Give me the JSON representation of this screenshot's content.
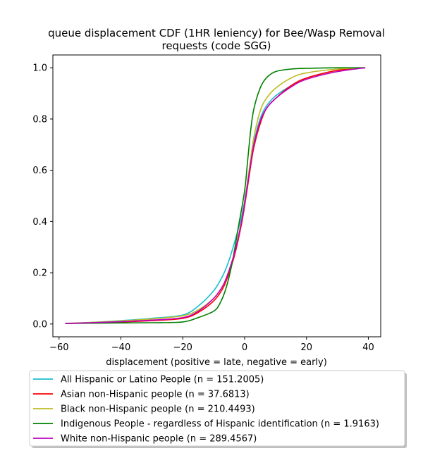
{
  "chart_data": {
    "type": "line",
    "title": "queue displacement CDF (1HR leniency) for Bee/Wasp Removal requests (code SGG)",
    "title_lines": [
      "queue displacement CDF (1HR leniency) for Bee/Wasp Removal",
      "requests (code SGG)"
    ],
    "xlabel": "displacement (positive = late, negative = early)",
    "ylabel": "",
    "xlim": [
      -62,
      44
    ],
    "ylim": [
      -0.05,
      1.05
    ],
    "xticks": [
      -60,
      -40,
      -20,
      0,
      20,
      40
    ],
    "yticks": [
      0.0,
      0.2,
      0.4,
      0.6,
      0.8,
      1.0
    ],
    "xtick_labels": [
      "−60",
      "−40",
      "−20",
      "0",
      "20",
      "40"
    ],
    "ytick_labels": [
      "0.0",
      "0.2",
      "0.4",
      "0.6",
      "0.8",
      "1.0"
    ],
    "grid": false,
    "legend_position": "below plot",
    "series": [
      {
        "name": "All Hispanic or Latino People (n = 151.2005)",
        "color": "#17becf",
        "points": [
          [
            -58,
            0.002
          ],
          [
            -50,
            0.006
          ],
          [
            -40,
            0.013
          ],
          [
            -30,
            0.022
          ],
          [
            -20,
            0.035
          ],
          [
            -15,
            0.07
          ],
          [
            -10,
            0.13
          ],
          [
            -7,
            0.19
          ],
          [
            -5,
            0.25
          ],
          [
            -3,
            0.33
          ],
          [
            -1,
            0.42
          ],
          [
            0,
            0.48
          ],
          [
            1,
            0.56
          ],
          [
            2,
            0.64
          ],
          [
            3,
            0.71
          ],
          [
            5,
            0.8
          ],
          [
            7,
            0.85
          ],
          [
            10,
            0.89
          ],
          [
            15,
            0.93
          ],
          [
            20,
            0.96
          ],
          [
            30,
            0.99
          ],
          [
            39,
            1.0
          ]
        ]
      },
      {
        "name": "Asian non-Hispanic people (n = 37.6813)",
        "color": "#ff0000",
        "points": [
          [
            -58,
            0.002
          ],
          [
            -50,
            0.004
          ],
          [
            -40,
            0.008
          ],
          [
            -30,
            0.013
          ],
          [
            -20,
            0.022
          ],
          [
            -15,
            0.045
          ],
          [
            -10,
            0.09
          ],
          [
            -7,
            0.14
          ],
          [
            -5,
            0.2
          ],
          [
            -3,
            0.28
          ],
          [
            -1,
            0.39
          ],
          [
            0,
            0.46
          ],
          [
            1,
            0.54
          ],
          [
            2,
            0.62
          ],
          [
            3,
            0.69
          ],
          [
            5,
            0.78
          ],
          [
            7,
            0.84
          ],
          [
            10,
            0.88
          ],
          [
            15,
            0.93
          ],
          [
            20,
            0.96
          ],
          [
            30,
            0.99
          ],
          [
            39,
            1.0
          ]
        ]
      },
      {
        "name": "Black non-Hispanic people (n = 210.4493)",
        "color": "#bcbd22",
        "points": [
          [
            -58,
            0.002
          ],
          [
            -50,
            0.006
          ],
          [
            -40,
            0.012
          ],
          [
            -30,
            0.02
          ],
          [
            -20,
            0.032
          ],
          [
            -15,
            0.055
          ],
          [
            -10,
            0.1
          ],
          [
            -7,
            0.15
          ],
          [
            -5,
            0.21
          ],
          [
            -3,
            0.29
          ],
          [
            -1,
            0.4
          ],
          [
            0,
            0.47
          ],
          [
            1,
            0.56
          ],
          [
            2,
            0.65
          ],
          [
            3,
            0.73
          ],
          [
            5,
            0.83
          ],
          [
            7,
            0.88
          ],
          [
            10,
            0.92
          ],
          [
            15,
            0.96
          ],
          [
            20,
            0.98
          ],
          [
            30,
            0.995
          ],
          [
            39,
            1.0
          ]
        ]
      },
      {
        "name": "Indigenous People - regardless of Hispanic identification (n = 1.9163)",
        "color": "#008000",
        "points": [
          [
            -58,
            0.002
          ],
          [
            -50,
            0.003
          ],
          [
            -40,
            0.004
          ],
          [
            -30,
            0.005
          ],
          [
            -20,
            0.008
          ],
          [
            -15,
            0.025
          ],
          [
            -10,
            0.05
          ],
          [
            -8,
            0.08
          ],
          [
            -6,
            0.14
          ],
          [
            -4,
            0.24
          ],
          [
            -2,
            0.38
          ],
          [
            0,
            0.52
          ],
          [
            1,
            0.64
          ],
          [
            2,
            0.76
          ],
          [
            3,
            0.84
          ],
          [
            5,
            0.92
          ],
          [
            7,
            0.96
          ],
          [
            10,
            0.985
          ],
          [
            15,
            0.995
          ],
          [
            20,
            0.998
          ],
          [
            30,
            1.0
          ],
          [
            39,
            1.0
          ]
        ]
      },
      {
        "name": "White non-Hispanic people (n = 289.4567)",
        "color": "#bf00bf",
        "points": [
          [
            -58,
            0.002
          ],
          [
            -50,
            0.005
          ],
          [
            -40,
            0.009
          ],
          [
            -30,
            0.015
          ],
          [
            -20,
            0.025
          ],
          [
            -15,
            0.05
          ],
          [
            -10,
            0.1
          ],
          [
            -7,
            0.15
          ],
          [
            -5,
            0.21
          ],
          [
            -3,
            0.29
          ],
          [
            -1,
            0.4
          ],
          [
            0,
            0.47
          ],
          [
            1,
            0.55
          ],
          [
            2,
            0.63
          ],
          [
            3,
            0.7
          ],
          [
            5,
            0.79
          ],
          [
            7,
            0.84
          ],
          [
            10,
            0.88
          ],
          [
            15,
            0.925
          ],
          [
            20,
            0.955
          ],
          [
            30,
            0.985
          ],
          [
            39,
            1.0
          ]
        ]
      }
    ]
  }
}
